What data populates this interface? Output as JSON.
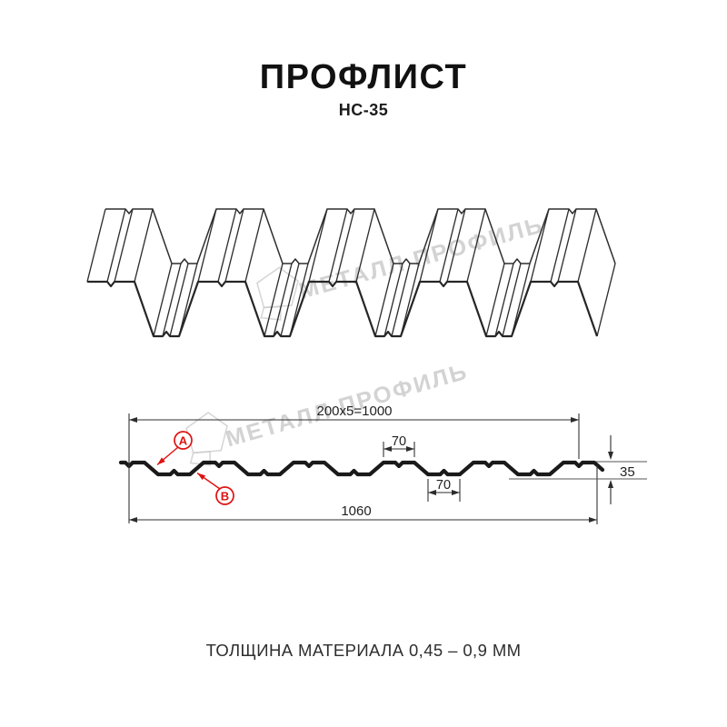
{
  "title": "ПРОФЛИСТ",
  "subtitle": "НС-35",
  "watermark": {
    "brand": "МЕТАЛЛ ПРОФИЛЬ"
  },
  "drawing": {
    "dims": {
      "pitch_total": "200x5=1000",
      "crest_top": "70",
      "valley_bottom": "70",
      "height": "35",
      "overall_width": "1060"
    },
    "markers": {
      "a": "А",
      "b": "В"
    },
    "colors": {
      "line": "#1a1a1a",
      "accent": "#de1212",
      "watermark": "#c9c9c9"
    }
  },
  "footer": {
    "thickness_note": "ТОЛЩИНА МАТЕРИАЛА 0,45 – 0,9 ММ"
  }
}
